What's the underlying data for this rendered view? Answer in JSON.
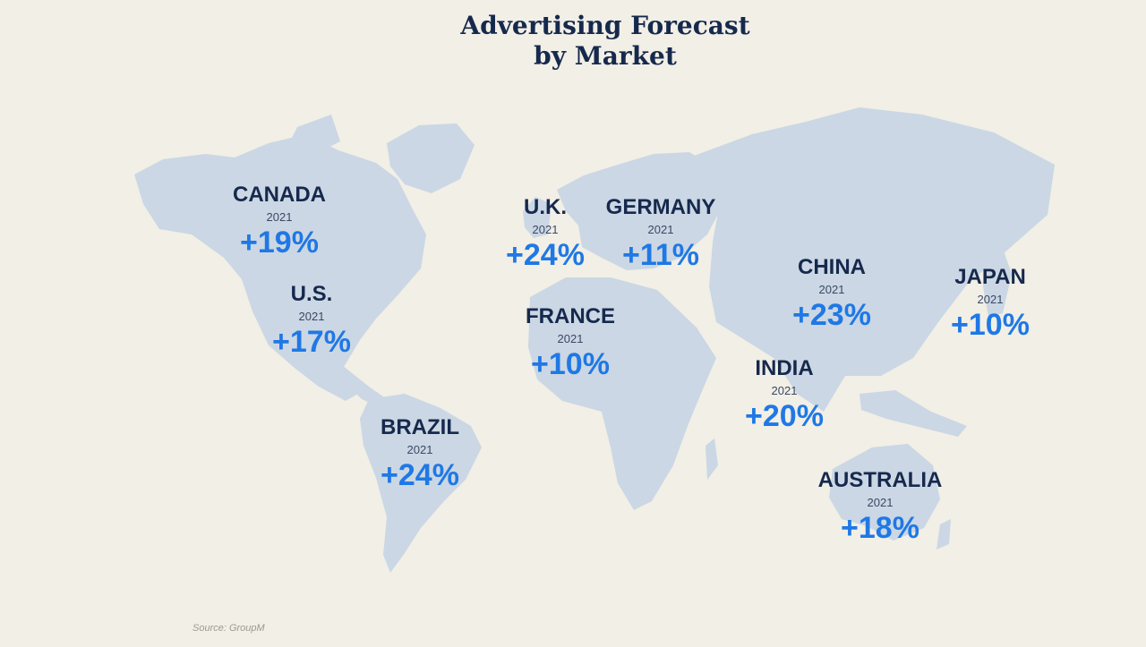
{
  "title": {
    "line1": "Advertising Forecast",
    "line2": "by Market"
  },
  "colors": {
    "background": "#f1efe6",
    "land": "#cbd7e4",
    "title": "#16294d",
    "accent": "#1f78e5"
  },
  "markets": [
    {
      "name": "CANADA",
      "year": "2021",
      "change": "+19%"
    },
    {
      "name": "U.S.",
      "year": "2021",
      "change": "+17%"
    },
    {
      "name": "BRAZIL",
      "year": "2021",
      "change": "+24%"
    },
    {
      "name": "U.K.",
      "year": "2021",
      "change": "+24%"
    },
    {
      "name": "GERMANY",
      "year": "2021",
      "change": "+11%"
    },
    {
      "name": "FRANCE",
      "year": "2021",
      "change": "+10%"
    },
    {
      "name": "CHINA",
      "year": "2021",
      "change": "+23%"
    },
    {
      "name": "JAPAN",
      "year": "2021",
      "change": "+10%"
    },
    {
      "name": "INDIA",
      "year": "2021",
      "change": "+20%"
    },
    {
      "name": "AUSTRALIA",
      "year": "2021",
      "change": "+18%"
    }
  ],
  "source": "Source: GroupM"
}
